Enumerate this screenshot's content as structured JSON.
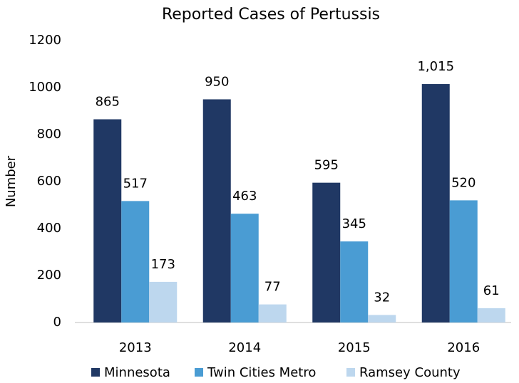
{
  "chart_data": {
    "type": "bar",
    "title": "Reported Cases of Pertussis",
    "y_label": "Number",
    "categories": [
      "2013",
      "2014",
      "2015",
      "2016"
    ],
    "series": [
      {
        "name": "Minnesota",
        "color": "#203864",
        "values": [
          865,
          950,
          595,
          1015
        ],
        "value_labels": [
          "865",
          "950",
          "595",
          "1,015"
        ]
      },
      {
        "name": "Twin Cities Metro",
        "color": "#4a9cd3",
        "values": [
          517,
          463,
          345,
          520
        ]
      },
      {
        "name": "Ramsey County",
        "color": "#bdd7ee",
        "values": [
          173,
          77,
          32,
          61
        ]
      }
    ],
    "ylim": [
      0,
      1200
    ],
    "yticks": [
      0,
      200,
      400,
      600,
      800,
      1000,
      1200
    ],
    "grid": false,
    "legend": "bottom"
  }
}
